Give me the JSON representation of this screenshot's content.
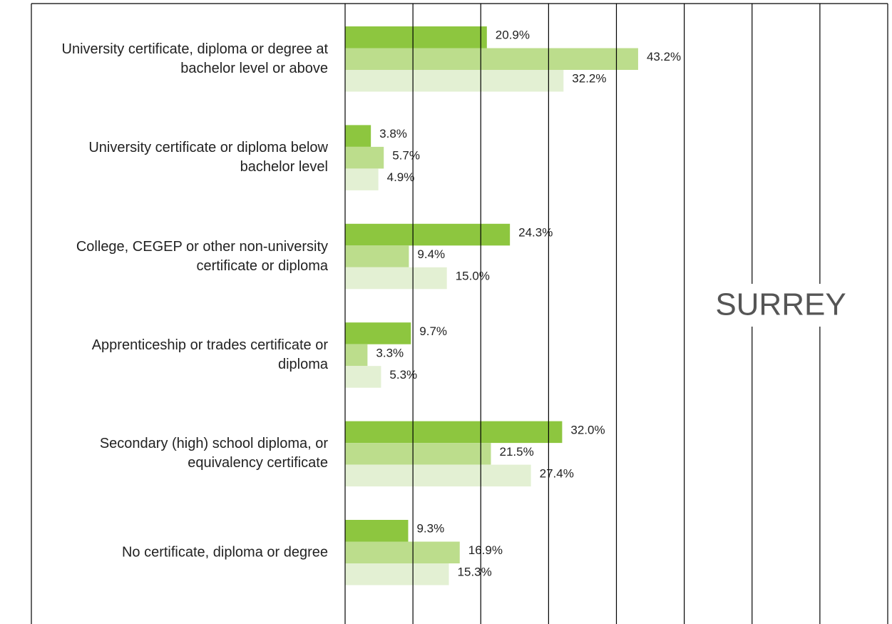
{
  "chart_data": {
    "type": "bar",
    "orientation": "horizontal",
    "annotation": "SURREY",
    "categories": [
      "University certificate, diploma or degree at bachelor level or above",
      "University certificate or diploma below bachelor level",
      "College, CEGEP or other non-university certificate or diploma",
      "Apprenticeship or trades certificate or diploma",
      "Secondary (high) school diploma, or equivalency certificate",
      "No certificate, diploma or degree"
    ],
    "series": [
      {
        "color": "#8dc63f",
        "values": [
          20.9,
          3.8,
          24.3,
          9.7,
          32.0,
          9.3
        ],
        "value_labels": [
          "20.9%",
          "3.8%",
          "24.3%",
          "9.7%",
          "32.0%",
          "9.3%"
        ]
      },
      {
        "color": "#bcdd8c",
        "values": [
          43.2,
          5.7,
          9.4,
          3.3,
          21.5,
          16.9
        ],
        "value_labels": [
          "43.2%",
          "5.7%",
          "9.4%",
          "3.3%",
          "21.5%",
          "16.9%"
        ]
      },
      {
        "color": "#e3f0d3",
        "values": [
          32.2,
          4.9,
          15.0,
          5.3,
          27.4,
          15.3
        ],
        "value_labels": [
          "32.2%",
          "4.9%",
          "15.0%",
          "5.3%",
          "27.4%",
          "15.3%"
        ]
      }
    ],
    "xlim": [
      0,
      80
    ],
    "xticks": [
      0,
      10,
      20,
      30,
      40,
      50,
      60,
      70,
      80
    ],
    "grid": true
  }
}
